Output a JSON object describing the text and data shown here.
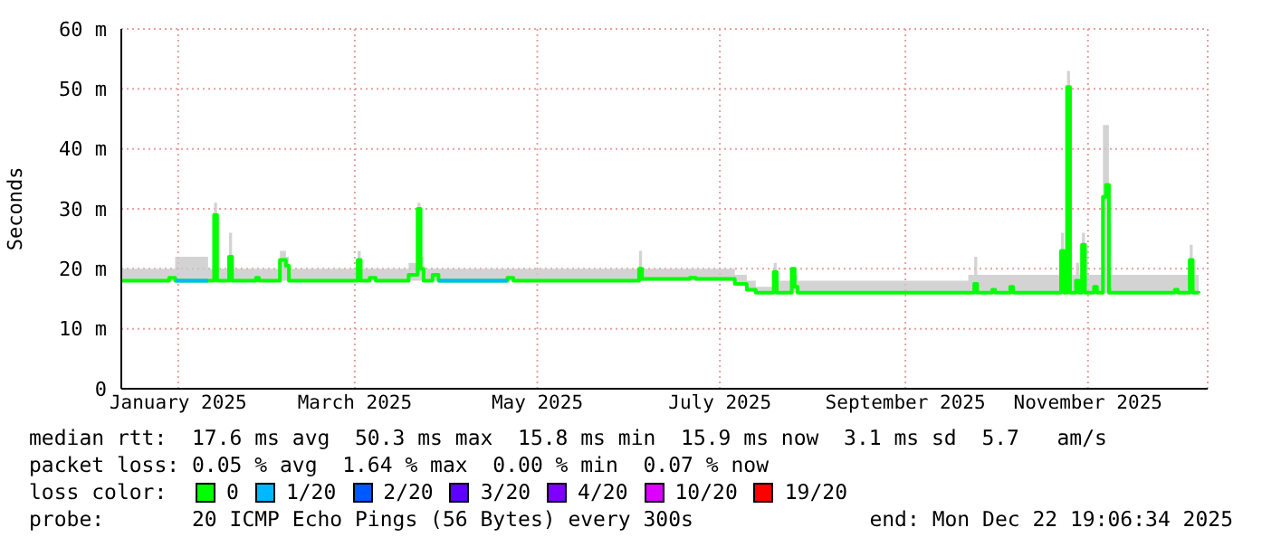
{
  "chart_data": {
    "type": "step",
    "ylabel": "Seconds",
    "xlim": [
      "2024-12-27",
      "2025-12-25"
    ],
    "xticks": [
      {
        "value": "2025-01-15",
        "label": "January 2025"
      },
      {
        "value": "2025-03-15",
        "label": "March 2025"
      },
      {
        "value": "2025-05-15",
        "label": "May 2025"
      },
      {
        "value": "2025-07-15",
        "label": "July 2025"
      },
      {
        "value": "2025-09-15",
        "label": "September 2025"
      },
      {
        "value": "2025-11-15",
        "label": "November 2025"
      }
    ],
    "ylim": [
      0,
      60
    ],
    "yticks": [
      0,
      {
        "value": 10,
        "label": "10 m"
      },
      {
        "value": 20,
        "label": "20 m"
      },
      {
        "value": 30,
        "label": "30 m"
      },
      {
        "value": 40,
        "label": "40 m"
      },
      {
        "value": 50,
        "label": "50 m"
      },
      {
        "value": 60,
        "label": "60 m"
      }
    ],
    "grid": true,
    "legend": "bottom",
    "legend_title": "loss color:",
    "series": [
      {
        "name": "0",
        "color": "#00ff00",
        "x": [
          "2024-12-27",
          "2025-01-05",
          "2025-01-12",
          "2025-01-14",
          "2025-01-25",
          "2025-01-27",
          "2025-01-28",
          "2025-02-01",
          "2025-02-02",
          "2025-02-10",
          "2025-02-11",
          "2025-02-18",
          "2025-02-20",
          "2025-02-21",
          "2025-03-10",
          "2025-03-16",
          "2025-03-17",
          "2025-03-20",
          "2025-03-22",
          "2025-04-02",
          "2025-04-05",
          "2025-04-06",
          "2025-04-07",
          "2025-04-10",
          "2025-04-12",
          "2025-05-05",
          "2025-05-07",
          "2025-06-15",
          "2025-06-18",
          "2025-06-19",
          "2025-07-05",
          "2025-07-07",
          "2025-07-20",
          "2025-07-24",
          "2025-07-27",
          "2025-08-02",
          "2025-08-03",
          "2025-08-08",
          "2025-08-09",
          "2025-08-10",
          "2025-10-06",
          "2025-10-08",
          "2025-10-09",
          "2025-10-14",
          "2025-10-15",
          "2025-10-20",
          "2025-10-21",
          "2025-11-05",
          "2025-11-06",
          "2025-11-07",
          "2025-11-08",
          "2025-11-09",
          "2025-11-11",
          "2025-11-12",
          "2025-11-13",
          "2025-11-14",
          "2025-11-17",
          "2025-11-18",
          "2025-11-20",
          "2025-11-21",
          "2025-11-22",
          "2025-12-14",
          "2025-12-15",
          "2025-12-19",
          "2025-12-20",
          "2025-12-22"
        ],
        "values": [
          18,
          18,
          18.5,
          18,
          18,
          29,
          18,
          22,
          18,
          18.5,
          18,
          21.5,
          20.5,
          18,
          18,
          21.5,
          18,
          18.5,
          18,
          19,
          30,
          20,
          18,
          19,
          18,
          18.5,
          18,
          18,
          20,
          18.3,
          18.5,
          18.3,
          17.5,
          16.5,
          16,
          19.5,
          16,
          20,
          17,
          16,
          16,
          17.5,
          16,
          16.5,
          16,
          17,
          16,
          16,
          23,
          16,
          50.3,
          16,
          18,
          16,
          24,
          16,
          17,
          16,
          32,
          34,
          16,
          16.5,
          16,
          21.5,
          16,
          15.9
        ],
        "lower": [
          18,
          18,
          18,
          18,
          18,
          18,
          18,
          18,
          18,
          18,
          18,
          18,
          18,
          18,
          18,
          18,
          18,
          18,
          18,
          18,
          18,
          18,
          18,
          18,
          18,
          18,
          18,
          18,
          18,
          18,
          18,
          18,
          17.5,
          16.5,
          16,
          16,
          16,
          16,
          16,
          16,
          16,
          16,
          16,
          16,
          16,
          16,
          16,
          16,
          16,
          16,
          16,
          16,
          16,
          16,
          16,
          16,
          16,
          16,
          16,
          16,
          16,
          16,
          16,
          16,
          16,
          15.9
        ],
        "upper": [
          20,
          20,
          20,
          22,
          20,
          31,
          20,
          26,
          20,
          20,
          20,
          23,
          22,
          20,
          20,
          23,
          20,
          20,
          20,
          21,
          31,
          22,
          20,
          20,
          20,
          20,
          20,
          20,
          23,
          20,
          20,
          20,
          19,
          18,
          17,
          21,
          18,
          20,
          19,
          18,
          19,
          22,
          19,
          19,
          19,
          19,
          19,
          19,
          26,
          19,
          53,
          19,
          21,
          19,
          26,
          19,
          19,
          19,
          44,
          44,
          19,
          19,
          19,
          24,
          19,
          18
        ]
      },
      {
        "name": "1/20",
        "color": "#00b8ff",
        "x": [
          "2025-01-14",
          "2025-01-25"
        ],
        "values": [
          18,
          18
        ]
      },
      {
        "color": "#00b8ff",
        "x": [
          "2025-04-12",
          "2025-05-05"
        ],
        "values": [
          18,
          18
        ]
      },
      {
        "name": "2/20",
        "color": "#0059ff"
      },
      {
        "name": "3/20",
        "color": "#5e00ff"
      },
      {
        "name": "4/20",
        "color": "#7e00ff"
      },
      {
        "name": "10/20",
        "color": "#dd00ff"
      },
      {
        "name": "19/20",
        "color": "#ff0000"
      }
    ],
    "annotations": [
      "median rtt:  17.6 ms avg  50.3 ms max  15.8 ms min  15.9 ms now  3.1 ms sd  5.7   am/s",
      "packet loss: 0.05 % avg  1.64 % max  0.00 % min  0.07 % now",
      "probe:       20 ICMP Echo Pings (56 Bytes) every 300s",
      "end: Mon Dec 22 19:06:34 2025"
    ]
  }
}
